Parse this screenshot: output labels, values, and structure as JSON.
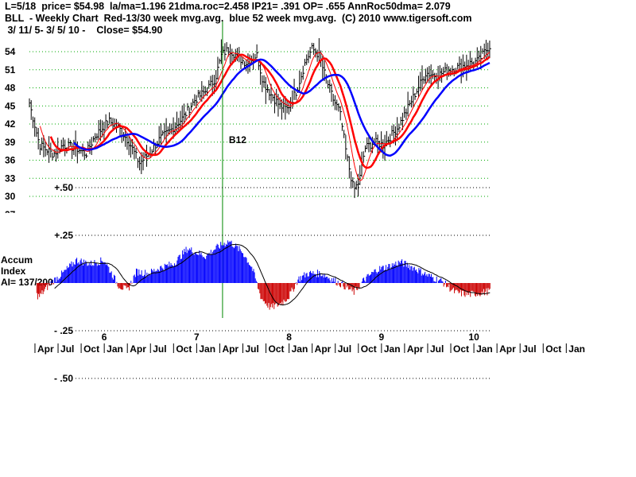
{
  "header": {
    "line1": "L=5/18  price= $54.98  la/ma=1.196 21dma.roc=2.458 IP21= .391 OP= .655 AnnRoc50dma= 2.079",
    "line2": "BLL  - Weekly Chart  Red-13/30 week mvg.avg.  blue 52 week mvg.avg.  (C) 2010 www.tigersoft.com",
    "line3": " 3/ 11/ 5- 3/ 5/ 10 -    Close= $54.90"
  },
  "chart_data": {
    "type": "line",
    "price_panel": {
      "ylim": [
        27,
        56
      ],
      "y_ticks": [
        54,
        51,
        48,
        45,
        42,
        39,
        36,
        33,
        30,
        27
      ],
      "series": [
        {
          "name": "Red-13/30 week mvg.avg.",
          "color": "#ff0000"
        },
        {
          "name": "blue 52 week mvg.avg.",
          "color": "#0000ff"
        }
      ],
      "annotation": {
        "text": "B12",
        "x": 2007.28
      }
    },
    "accum_panel": {
      "label_lines": [
        "Accum",
        "Index",
        "AI= 137/200"
      ],
      "ylim": [
        -0.5,
        0.5
      ],
      "y_ticks": [
        "+.50",
        "+.25",
        "- .25",
        "- .50"
      ],
      "positive_color": "#0000ff",
      "negative_color": "#cc0000"
    },
    "x_years": [
      "6",
      "7",
      "8",
      "9",
      "10"
    ],
    "x_months": [
      "Apr",
      "Jul",
      "Oct",
      "Jan",
      "Apr",
      "Jul",
      "Oct",
      "Jan",
      "Apr",
      "Jul",
      "Oct",
      "Jan",
      "Apr",
      "Jul",
      "Oct",
      "Jan",
      "Apr",
      "Jul",
      "Oct",
      "Jan",
      "Apr",
      "Jul",
      "Oct",
      "Jan"
    ],
    "xlim": [
      2005.19,
      2010.18
    ],
    "grid": true
  }
}
